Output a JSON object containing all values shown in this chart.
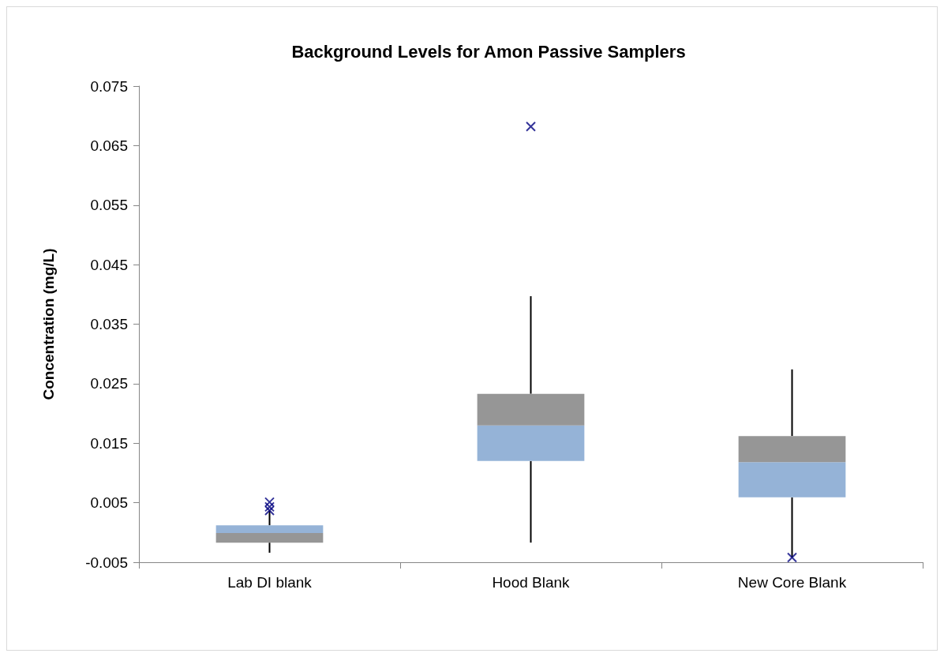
{
  "chart_data": {
    "type": "box",
    "title": "Background Levels for Amon Passive Samplers",
    "ylabel": "Concentration (mg/L)",
    "categories": [
      "Lab DI blank",
      "Hood Blank",
      "New Core Blank"
    ],
    "boxes": [
      {
        "low": -0.0034,
        "q1": -0.0017,
        "median": -0.0001,
        "q3": 0.0012,
        "high": 0.0037
      },
      {
        "low": -0.0017,
        "q1": 0.012,
        "median": 0.018,
        "q3": 0.0233,
        "high": 0.0397
      },
      {
        "low": -0.0042,
        "q1": 0.0059,
        "median": 0.0118,
        "q3": 0.0162,
        "high": 0.0274
      }
    ],
    "colors": [
      [
        "#969696",
        "#95b3d7"
      ],
      [
        "#95b3d7",
        "#969696"
      ],
      [
        "#95b3d7",
        "#969696"
      ]
    ],
    "series": [
      {
        "type": "scatter",
        "color": "#000080",
        "x": [
          "Lab DI blank",
          "Lab DI blank",
          "Lab DI blank",
          "Hood Blank",
          "New Core Blank"
        ],
        "values": [
          0.0051,
          0.0043,
          0.0037,
          0.0682,
          -0.0042
        ]
      }
    ],
    "marker": "cross",
    "ylim": [
      -0.005,
      0.075
    ],
    "yticks": [
      -0.005,
      0.005,
      0.015,
      0.025,
      0.035,
      0.045,
      0.055,
      0.065,
      0.075
    ],
    "grid": false
  }
}
